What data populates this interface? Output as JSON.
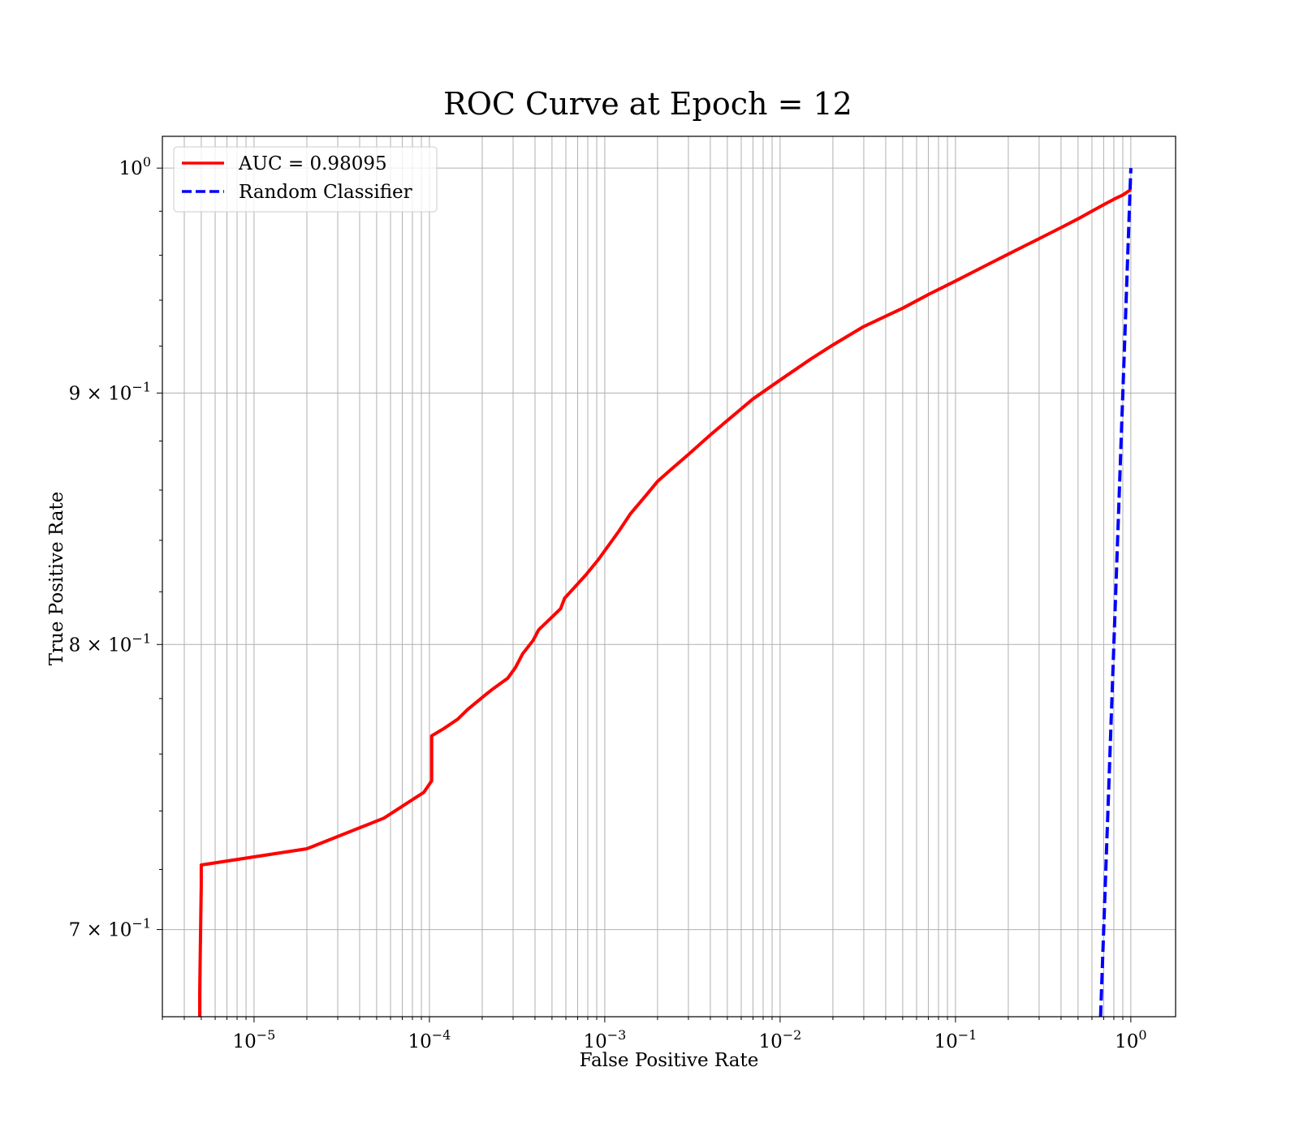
{
  "chart_data": {
    "type": "line",
    "title": "ROC Curve at Epoch = 12",
    "xlabel": "False Positive Rate",
    "ylabel": "True Positive Rate",
    "xscale": "log",
    "yscale": "log",
    "xlim": [
      3e-06,
      1.8
    ],
    "ylim": [
      0.672,
      1.015
    ],
    "grid": true,
    "legend_position": "top-left",
    "x_ticks": [
      {
        "base": "10",
        "exp": "−5",
        "value": 1e-05
      },
      {
        "base": "10",
        "exp": "−4",
        "value": 0.0001
      },
      {
        "base": "10",
        "exp": "−3",
        "value": 0.001
      },
      {
        "base": "10",
        "exp": "−2",
        "value": 0.01
      },
      {
        "base": "10",
        "exp": "−1",
        "value": 0.1
      },
      {
        "base": "10",
        "exp": "0",
        "value": 1
      }
    ],
    "y_ticks": [
      {
        "base": "10",
        "exp": "0",
        "value": 1.0
      },
      {
        "base": "9 × 10",
        "exp": "−1",
        "value": 0.9
      },
      {
        "base": "8 × 10",
        "exp": "−1",
        "value": 0.8
      },
      {
        "base": "7 × 10",
        "exp": "−1",
        "value": 0.7
      }
    ],
    "series": [
      {
        "name": "AUC = 0.98095",
        "color": "#ff0000",
        "style": "solid",
        "x": [
          4.9e-06,
          4.9e-06,
          5e-06,
          5e-06,
          2e-05,
          5.5e-05,
          9.3e-05,
          0.000103,
          0.000103,
          0.00012,
          0.000145,
          0.000165,
          0.00021,
          0.00023,
          0.00028,
          0.00031,
          0.00034,
          0.00039,
          0.00042,
          0.00056,
          0.00059,
          0.00078,
          0.00092,
          0.0012,
          0.0014,
          0.0017,
          0.002,
          0.0024,
          0.003,
          0.004,
          0.005,
          0.007,
          0.01,
          0.015,
          0.02,
          0.03,
          0.05,
          0.07,
          0.1,
          0.15,
          0.2,
          0.3,
          0.4,
          0.5,
          0.6,
          0.7,
          0.8,
          0.9,
          1.0
        ],
        "y": [
          0.672,
          0.68,
          0.715,
          0.7215,
          0.727,
          0.7375,
          0.7465,
          0.7505,
          0.7665,
          0.769,
          0.7725,
          0.776,
          0.7815,
          0.7835,
          0.7875,
          0.7915,
          0.7965,
          0.8015,
          0.8055,
          0.8135,
          0.8175,
          0.8265,
          0.8325,
          0.8435,
          0.8505,
          0.8575,
          0.8635,
          0.8685,
          0.8745,
          0.8825,
          0.8885,
          0.8975,
          0.9055,
          0.9145,
          0.9205,
          0.9285,
          0.9365,
          0.9425,
          0.9485,
          0.9555,
          0.9605,
          0.9675,
          0.9725,
          0.9765,
          0.98,
          0.983,
          0.9855,
          0.9875,
          0.99
        ]
      },
      {
        "name": "Random Classifier",
        "color": "#0000ff",
        "style": "dashed",
        "x": [
          0.672,
          1.0
        ],
        "y": [
          0.672,
          1.0
        ]
      }
    ]
  }
}
